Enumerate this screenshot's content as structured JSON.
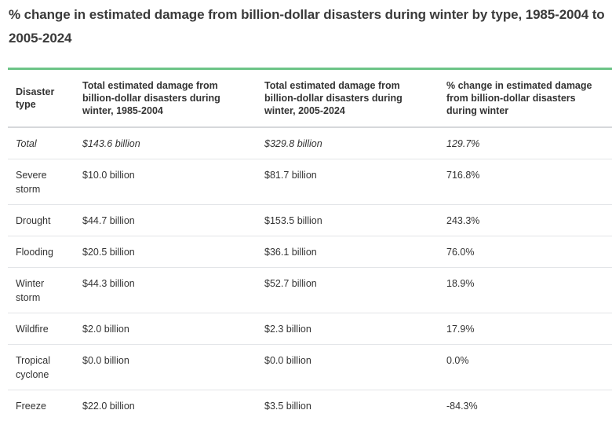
{
  "title": "% change in estimated damage from billion-dollar disasters during winter by type, 1985-2004 to 2005-2024",
  "accent_color": "#6cc487",
  "table": {
    "headers": [
      "Disaster type",
      "Total estimated damage from billion-dollar disasters during winter, 1985-2004",
      "Total estimated damage from billion-dollar disasters during winter, 2005-2024",
      "% change in estimated damage from billion-dollar disasters during winter"
    ],
    "rows": [
      [
        "Total",
        "$143.6 billion",
        "$329.8 billion",
        "129.7%"
      ],
      [
        "Severe storm",
        "$10.0 billion",
        "$81.7 billion",
        "716.8%"
      ],
      [
        "Drought",
        "$44.7 billion",
        "$153.5 billion",
        "243.3%"
      ],
      [
        "Flooding",
        "$20.5 billion",
        "$36.1 billion",
        "76.0%"
      ],
      [
        "Winter storm",
        "$44.3 billion",
        "$52.7 billion",
        "18.9%"
      ],
      [
        "Wildfire",
        "$2.0 billion",
        "$2.3 billion",
        "17.9%"
      ],
      [
        "Tropical cyclone",
        "$0.0 billion",
        "$0.0 billion",
        "0.0%"
      ],
      [
        "Freeze",
        "$22.0 billion",
        "$3.5 billion",
        "-84.3%"
      ]
    ]
  }
}
